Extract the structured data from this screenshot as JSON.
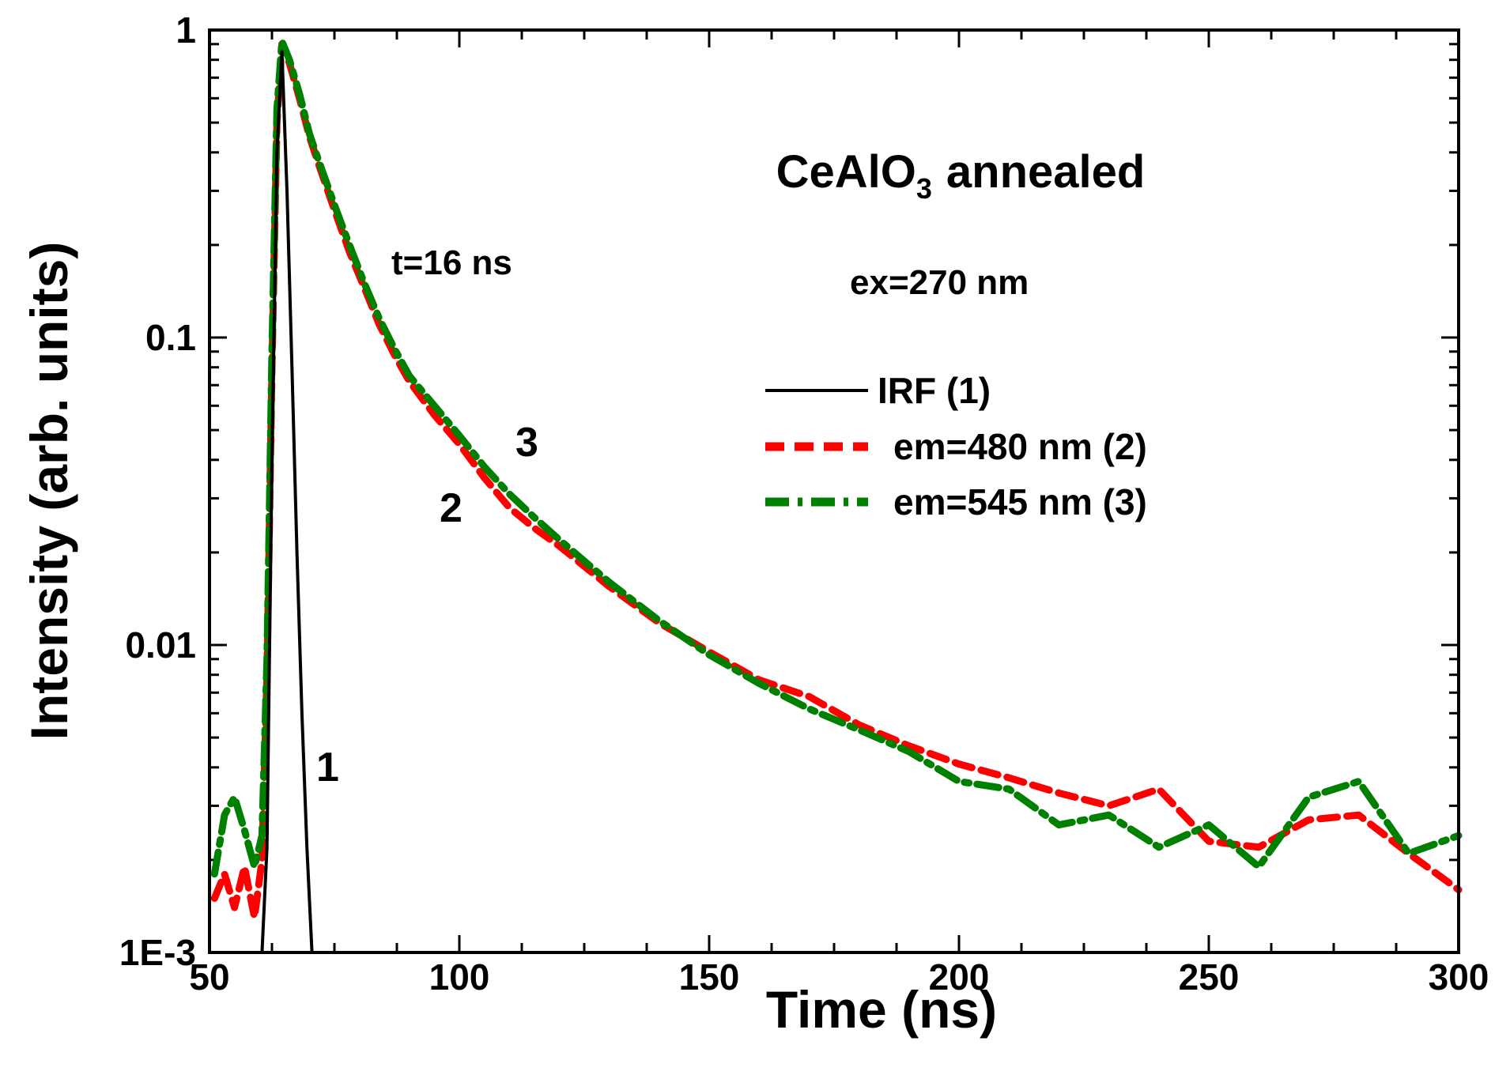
{
  "chart_data": {
    "type": "line",
    "title": "CeAlO",
    "title_subscript": "3",
    "title_suffix": "annealed",
    "xlabel": "Time (ns)",
    "ylabel": "Intensity (arb. units)",
    "xlim": [
      50,
      300
    ],
    "ylim": [
      0.001,
      1
    ],
    "yscale": "log",
    "x_ticks": [
      "50",
      "100",
      "150",
      "200",
      "250",
      "300"
    ],
    "y_ticks": [
      "1E-3",
      "0.01",
      "0.1",
      "1"
    ],
    "y_tick_values": [
      0.001,
      0.01,
      0.1,
      1
    ],
    "annotations": {
      "tau": "t=16 ns",
      "excitation": "ex=270 nm",
      "curve1": "1",
      "curve2": "2",
      "curve3": "3"
    },
    "legend": {
      "position": "center-right",
      "entries": [
        "IRF (1)",
        "em=480 nm (2)",
        "em=545 nm (3)"
      ]
    },
    "series": [
      {
        "name": "IRF (1)",
        "color": "#000000",
        "style": "solid",
        "x": [
          60.5,
          61.5,
          62.5,
          63.5,
          64.5,
          65.5,
          66.5,
          67.5,
          68.5,
          69.5,
          70.5
        ],
        "y": [
          0.001,
          0.0022,
          0.04,
          0.4,
          0.85,
          0.3,
          0.08,
          0.02,
          0.006,
          0.0022,
          0.001
        ]
      },
      {
        "name": "em=480 nm (2)",
        "color": "#ff0000",
        "style": "dashed",
        "x": [
          51,
          53,
          55,
          57,
          59,
          60.5,
          61.5,
          62.5,
          63.5,
          64.5,
          66,
          68,
          70,
          72,
          75,
          78,
          81,
          84,
          87,
          90,
          95,
          100,
          105,
          110,
          115,
          120,
          130,
          140,
          150,
          160,
          170,
          180,
          190,
          200,
          210,
          220,
          230,
          240,
          250,
          260,
          270,
          280,
          290,
          300
        ],
        "y": [
          0.0015,
          0.0018,
          0.0014,
          0.0019,
          0.0013,
          0.002,
          0.008,
          0.08,
          0.5,
          0.9,
          0.78,
          0.6,
          0.45,
          0.36,
          0.26,
          0.19,
          0.145,
          0.11,
          0.088,
          0.072,
          0.056,
          0.045,
          0.035,
          0.028,
          0.024,
          0.021,
          0.0155,
          0.0118,
          0.0095,
          0.0077,
          0.0068,
          0.0055,
          0.0047,
          0.0041,
          0.0037,
          0.0033,
          0.003,
          0.0034,
          0.0023,
          0.0022,
          0.0027,
          0.0028,
          0.0021,
          0.0016
        ]
      },
      {
        "name": "em=545 nm (3)",
        "color": "#008000",
        "style": "dashdot",
        "x": [
          51,
          53,
          55,
          57,
          59,
          60.5,
          61.5,
          62.5,
          63.5,
          64.5,
          66,
          68,
          70,
          72,
          75,
          78,
          81,
          84,
          87,
          90,
          95,
          100,
          105,
          110,
          115,
          120,
          130,
          140,
          150,
          160,
          170,
          180,
          190,
          200,
          210,
          220,
          230,
          240,
          250,
          260,
          270,
          280,
          290,
          300
        ],
        "y": [
          0.0018,
          0.0028,
          0.0032,
          0.0025,
          0.0019,
          0.0024,
          0.009,
          0.09,
          0.55,
          0.92,
          0.8,
          0.62,
          0.46,
          0.37,
          0.27,
          0.2,
          0.15,
          0.115,
          0.092,
          0.075,
          0.06,
          0.048,
          0.038,
          0.031,
          0.026,
          0.022,
          0.016,
          0.012,
          0.0093,
          0.0075,
          0.0062,
          0.0053,
          0.0045,
          0.0036,
          0.0034,
          0.0026,
          0.0028,
          0.0022,
          0.0026,
          0.0019,
          0.0032,
          0.0036,
          0.0021,
          0.0024
        ]
      }
    ]
  }
}
